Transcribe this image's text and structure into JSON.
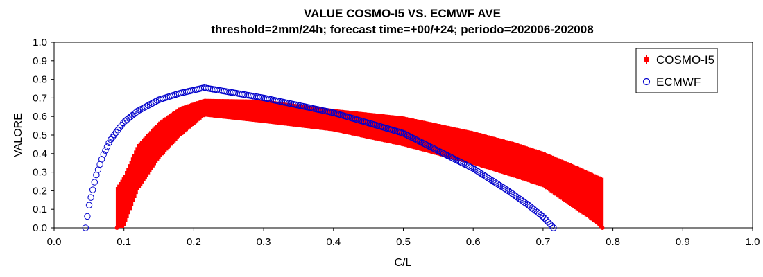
{
  "chart_data": {
    "type": "line",
    "title": "VALUE COSMO-I5 VS. ECMWF AVE",
    "subtitle": "threshold=2mm/24h; forecast time=+00/+24; periodo=202006-202008",
    "xlabel": "C/L",
    "ylabel": "VALORE",
    "xlim": [
      0.0,
      1.0
    ],
    "ylim": [
      0.0,
      1.0
    ],
    "xticks": [
      "0.0",
      "0.1",
      "0.2",
      "0.3",
      "0.4",
      "0.5",
      "0.6",
      "0.7",
      "0.8",
      "0.9",
      "1.0"
    ],
    "yticks": [
      "0.0",
      "0.1",
      "0.2",
      "0.3",
      "0.4",
      "0.5",
      "0.6",
      "0.7",
      "0.8",
      "0.9",
      "1.0"
    ],
    "grid": false,
    "legend_position": "top-right",
    "series": [
      {
        "name": "COSMO-I5",
        "marker": "filled-circle-with-errorbar",
        "color": "#ff0000",
        "x": [
          0.09,
          0.1,
          0.12,
          0.15,
          0.18,
          0.215,
          0.3,
          0.4,
          0.5,
          0.6,
          0.66,
          0.7,
          0.75,
          0.785
        ],
        "y": [
          0.0,
          0.13,
          0.32,
          0.47,
          0.57,
          0.645,
          0.62,
          0.575,
          0.51,
          0.41,
          0.33,
          0.26,
          0.14,
          0.0
        ],
        "lower": [
          0.0,
          0.0,
          0.2,
          0.37,
          0.49,
          0.6,
          0.565,
          0.52,
          0.44,
          0.34,
          0.27,
          0.22,
          0.09,
          0.0
        ],
        "upper": [
          0.22,
          0.28,
          0.45,
          0.57,
          0.65,
          0.695,
          0.69,
          0.64,
          0.6,
          0.52,
          0.46,
          0.41,
          0.33,
          0.27
        ]
      },
      {
        "name": "ECMWF",
        "marker": "open-circle",
        "color": "#0000cc",
        "x": [
          0.045,
          0.05,
          0.06,
          0.07,
          0.08,
          0.1,
          0.12,
          0.15,
          0.18,
          0.215,
          0.3,
          0.4,
          0.5,
          0.6,
          0.65,
          0.68,
          0.7,
          0.715
        ],
        "y": [
          0.0,
          0.12,
          0.28,
          0.39,
          0.47,
          0.57,
          0.63,
          0.69,
          0.725,
          0.755,
          0.7,
          0.62,
          0.51,
          0.32,
          0.2,
          0.12,
          0.06,
          0.0
        ]
      }
    ]
  }
}
